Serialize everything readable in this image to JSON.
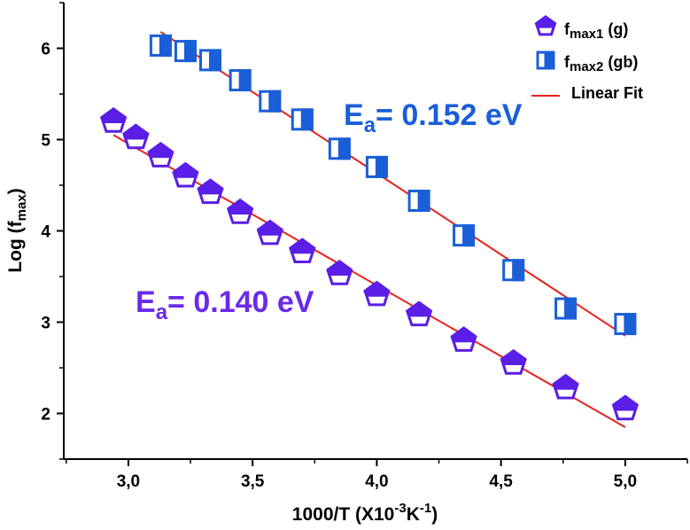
{
  "chart_data": {
    "type": "scatter",
    "title": "",
    "xlabel": {
      "main": "1000/T (X10",
      "sup1": "-3",
      "mid": "K",
      "sup2": "-1",
      "end": ")"
    },
    "ylabel": {
      "main": "Log (f",
      "sub": "max",
      "end": ")"
    },
    "xlim": [
      2.74,
      5.25
    ],
    "ylim": [
      1.5,
      6.5
    ],
    "x_ticks": [
      3.0,
      3.5,
      4.0,
      4.5,
      5.0
    ],
    "x_tick_labels": [
      "3,0",
      "3,5",
      "4,0",
      "4,5",
      "5,0"
    ],
    "y_ticks": [
      2,
      3,
      4,
      5,
      6
    ],
    "y_tick_labels": [
      "2",
      "3",
      "4",
      "5",
      "6"
    ],
    "series": [
      {
        "name": "fmax1 (g)",
        "legend": {
          "main": "f",
          "sub": "max1",
          "end": " (g)"
        },
        "color": "#5a1ee6",
        "marker": "pentagon-half-filled",
        "x": [
          2.94,
          3.03,
          3.13,
          3.23,
          3.33,
          3.45,
          3.57,
          3.7,
          3.85,
          4.0,
          4.17,
          4.35,
          4.55,
          4.76,
          5.0
        ],
        "y": [
          5.2,
          5.02,
          4.82,
          4.6,
          4.42,
          4.2,
          3.97,
          3.77,
          3.53,
          3.3,
          3.08,
          2.8,
          2.55,
          2.28,
          2.05
        ]
      },
      {
        "name": "fmax2 (gb)",
        "legend": {
          "main": "f",
          "sub": "max2",
          "end": " (gb)"
        },
        "color": "#1a5ed8",
        "marker": "square-half-filled",
        "x": [
          3.13,
          3.23,
          3.33,
          3.45,
          3.57,
          3.7,
          3.85,
          4.0,
          4.17,
          4.35,
          4.55,
          4.76,
          5.0
        ],
        "y": [
          6.03,
          5.97,
          5.87,
          5.65,
          5.42,
          5.22,
          4.9,
          4.7,
          4.33,
          3.95,
          3.57,
          3.15,
          2.98
        ]
      }
    ],
    "fits": [
      {
        "name": "Linear Fit",
        "color": "#e8221c",
        "x": [
          2.94,
          5.0
        ],
        "y": [
          5.05,
          1.85
        ]
      },
      {
        "name": "Linear Fit",
        "color": "#e8221c",
        "x": [
          3.13,
          5.0
        ],
        "y": [
          6.18,
          2.85
        ]
      }
    ],
    "legend_fit_label": "Linear Fit",
    "legend_position": "top-right",
    "annotations": [
      {
        "main": "E",
        "sub": "a",
        "end": "= 0.152 eV",
        "color": "#1a5ed8"
      },
      {
        "main": "E",
        "sub": "a",
        "end": "= 0.140 eV",
        "color": "#6a2ae8"
      }
    ]
  }
}
